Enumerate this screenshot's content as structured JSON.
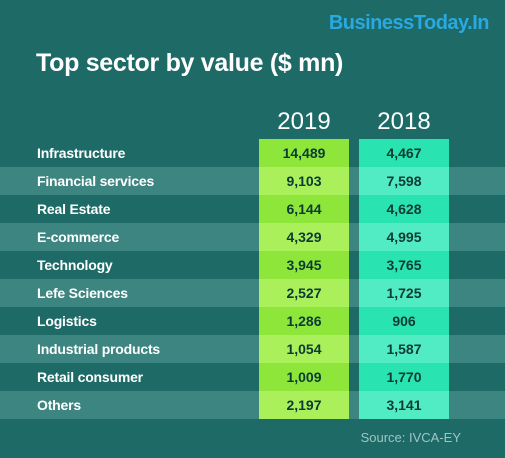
{
  "brand": "BusinessToday.In",
  "chart_data": {
    "type": "table",
    "title": "Top sector by value ($ mn)",
    "columns": [
      "2019",
      "2018"
    ],
    "rows": [
      {
        "label": "Infrastructure",
        "values": [
          "14,489",
          "4,467"
        ]
      },
      {
        "label": "Financial services",
        "values": [
          "9,103",
          "7,598"
        ]
      },
      {
        "label": "Real Estate",
        "values": [
          "6,144",
          "4,628"
        ]
      },
      {
        "label": "E-commerce",
        "values": [
          "4,329",
          "4,995"
        ]
      },
      {
        "label": "Technology",
        "values": [
          "3,945",
          "3,765"
        ]
      },
      {
        "label": "Lefe Sciences",
        "values": [
          "2,527",
          "1,725"
        ]
      },
      {
        "label": "Logistics",
        "values": [
          "1,286",
          "906"
        ]
      },
      {
        "label": "Industrial products",
        "values": [
          "1,054",
          "1,587"
        ]
      },
      {
        "label": "Retail consumer",
        "values": [
          "1,009",
          "1,770"
        ]
      },
      {
        "label": "Others",
        "values": [
          "2,197",
          "3,141"
        ]
      }
    ],
    "source": "Source: IVCA-EY"
  },
  "colors": {
    "background": "#1e6a67",
    "band": "#3d8580",
    "col_2019": "#8ee63a",
    "col_2018": "#29e3b0",
    "brand": "#2aa8e0"
  }
}
